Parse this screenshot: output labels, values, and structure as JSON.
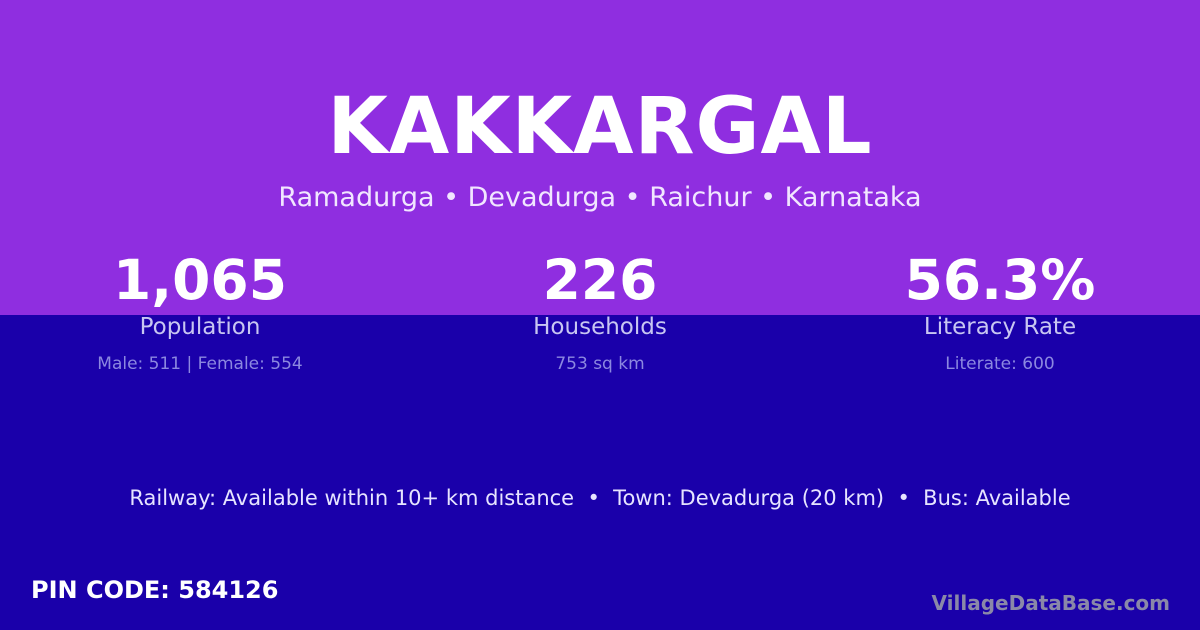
{
  "village": "KAKKARGAL",
  "location": "Ramadurga • Devadurga • Raichur • Karnataka",
  "stats": [
    {
      "value": "1,065",
      "label": "Population",
      "note": "Male: 511 | Female: 554"
    },
    {
      "value": "226",
      "label": "Households",
      "note": "753 sq km"
    },
    {
      "value": "56.3%",
      "label": "Literacy Rate",
      "note": "Literate: 600"
    }
  ],
  "connectivity": "Railway: Available within 10+ km distance  •  Town: Devadurga (20 km)  •  Bus: Available",
  "pin": "PIN CODE: 584126",
  "brand": "VillageDataBase.com",
  "colors": {
    "top": "#8f2ee0",
    "bottom": "#1a00aa"
  }
}
